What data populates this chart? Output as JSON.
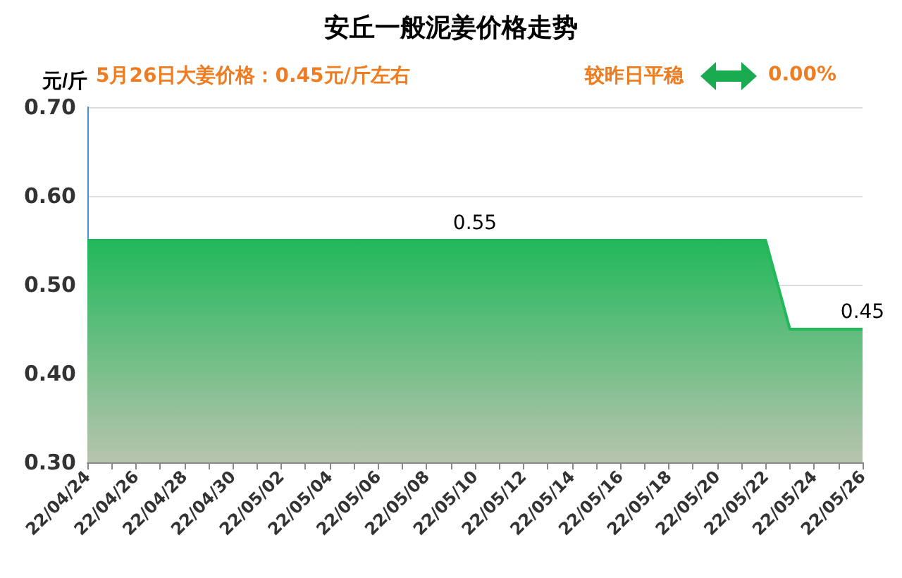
{
  "chart_data": {
    "type": "area",
    "title": "安丘一般泥姜价格走势",
    "ylabel": "元/斤",
    "annotations": [
      "5月26日大姜价格：0.45元/斤左右",
      "较昨日平稳",
      "0.00%"
    ],
    "categories": [
      "22/04/24",
      null,
      "22/04/26",
      null,
      "22/04/28",
      null,
      "22/04/30",
      null,
      "22/05/02",
      null,
      "22/05/04",
      null,
      "22/05/06",
      null,
      "22/05/08",
      null,
      "22/05/10",
      null,
      "22/05/12",
      null,
      "22/05/14",
      null,
      "22/05/16",
      null,
      "22/05/18",
      null,
      "22/05/20",
      null,
      "22/05/22",
      null,
      "22/05/24",
      null,
      "22/05/26"
    ],
    "series": [
      {
        "color": "#22b85a",
        "values": [
          0.55,
          0.55,
          0.55,
          0.55,
          0.55,
          0.55,
          0.55,
          0.55,
          0.55,
          0.55,
          0.55,
          0.55,
          0.55,
          0.55,
          0.55,
          0.55,
          0.55,
          0.55,
          0.55,
          0.55,
          0.55,
          0.55,
          0.55,
          0.55,
          0.55,
          0.55,
          0.55,
          0.55,
          0.55,
          0.45,
          0.45,
          0.45,
          0.45
        ],
        "value_labels": [
          null,
          null,
          null,
          null,
          null,
          null,
          null,
          null,
          null,
          null,
          null,
          null,
          null,
          null,
          null,
          null,
          "0.55",
          null,
          null,
          null,
          null,
          null,
          null,
          null,
          null,
          null,
          null,
          null,
          null,
          null,
          null,
          null,
          "0.45"
        ]
      }
    ],
    "ylim": [
      0.3,
      0.7
    ],
    "yticks": [
      {
        "value": 0.3,
        "label": "0.30"
      },
      {
        "value": 0.4,
        "label": "0.40"
      },
      {
        "value": 0.5,
        "label": "0.50"
      },
      {
        "value": 0.6,
        "label": "0.60"
      },
      {
        "value": 0.7,
        "label": "0.70"
      }
    ],
    "grid": "y",
    "marker": "none"
  }
}
